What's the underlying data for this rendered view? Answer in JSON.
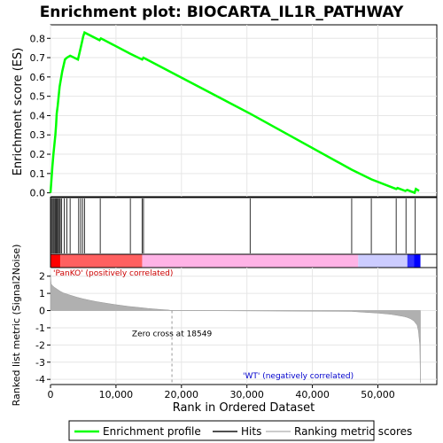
{
  "chart_data": {
    "type": "line",
    "title": "Enrichment plot: BIOCARTA_IL1R_PATHWAY",
    "es_panel": {
      "ylabel": "Enrichment score (ES)",
      "ylim": [
        -0.02,
        0.87
      ],
      "yticks": [
        0.0,
        0.1,
        0.2,
        0.3,
        0.4,
        0.5,
        0.6,
        0.7,
        0.8
      ],
      "ytick_labels": [
        "0.0",
        "0.1",
        "0.2",
        "0.3",
        "0.4",
        "0.5",
        "0.6",
        "0.7",
        "0.8"
      ],
      "series": [
        {
          "name": "Enrichment profile",
          "color": "#00ff00",
          "x": [
            0,
            150,
            300,
            450,
            600,
            750,
            850,
            950,
            1100,
            1250,
            1400,
            1600,
            1800,
            2000,
            2200,
            2500,
            3000,
            4200,
            4400,
            4600,
            4800,
            5000,
            5200,
            7500,
            7700,
            12200,
            14000,
            14200,
            30500,
            46000,
            49000,
            52800,
            53000,
            54200,
            54500,
            55600,
            55800,
            56300
          ],
          "y": [
            0.0,
            0.07,
            0.14,
            0.2,
            0.25,
            0.3,
            0.35,
            0.41,
            0.45,
            0.5,
            0.55,
            0.59,
            0.63,
            0.66,
            0.69,
            0.7,
            0.71,
            0.69,
            0.72,
            0.75,
            0.78,
            0.81,
            0.83,
            0.79,
            0.8,
            0.72,
            0.69,
            0.7,
            0.41,
            0.12,
            0.07,
            0.02,
            0.025,
            0.01,
            0.015,
            0.0,
            0.02,
            0.01
          ]
        }
      ]
    },
    "hits_panel": {
      "hit_positions": [
        100,
        250,
        400,
        550,
        700,
        820,
        950,
        1050,
        1200,
        1350,
        1500,
        1700,
        2100,
        2500,
        3000,
        4300,
        4600,
        4900,
        5200,
        7600,
        12200,
        14000,
        14200,
        30500,
        46000,
        49000,
        52800,
        54300,
        55700
      ]
    },
    "metric_panel": {
      "ylabel": "Ranked list metric (Signal2Noise)",
      "xlabel": "Rank in Ordered Dataset",
      "ylim": [
        -4.3,
        2.5
      ],
      "yticks": [
        -4,
        -3,
        -2,
        -1,
        0,
        1,
        2
      ],
      "ytick_labels": [
        "-4",
        "-3",
        "-2",
        "-1",
        "0",
        "1",
        "2"
      ],
      "xlim": [
        0,
        59000
      ],
      "xticks": [
        0,
        10000,
        20000,
        30000,
        40000,
        50000
      ],
      "xtick_labels": [
        "0",
        "10,000",
        "20,000",
        "30,000",
        "40,000",
        "50,000"
      ],
      "metric_x": [
        0,
        100,
        300,
        600,
        1000,
        1500,
        2000,
        3000,
        4000,
        5000,
        6000,
        7000,
        8000,
        9000,
        10000,
        11000,
        12000,
        13000,
        14000,
        15000,
        16000,
        17000,
        18000,
        18549,
        46000,
        48000,
        50000,
        52000,
        53000,
        54000,
        54500,
        55000,
        55500,
        56000,
        56200,
        56400,
        56500
      ],
      "metric_y": [
        2.1,
        1.55,
        1.45,
        1.35,
        1.25,
        1.12,
        1.02,
        0.9,
        0.78,
        0.68,
        0.6,
        0.52,
        0.46,
        0.4,
        0.34,
        0.29,
        0.24,
        0.2,
        0.16,
        0.12,
        0.09,
        0.06,
        0.03,
        0.0,
        -0.05,
        -0.1,
        -0.15,
        -0.22,
        -0.28,
        -0.35,
        -0.4,
        -0.48,
        -0.6,
        -0.85,
        -1.2,
        -2.0,
        -4.2
      ],
      "zero_cross_label": "Zero cross at 18549",
      "pos_label": "'PanKO' (positively correlated)",
      "neg_label": "'WT' (negatively correlated)"
    },
    "legend": {
      "items": [
        {
          "label": "Enrichment profile",
          "color": "#00ff00"
        },
        {
          "label": "Hits",
          "color": "#505050"
        },
        {
          "label": "Ranking metric scores",
          "color": "#cccccc"
        }
      ]
    },
    "colors": {
      "profile": "#00ff00",
      "pos_bar": "#ff0000",
      "pos_bar_light": "#ff6060",
      "neg_bar": "#ffb3e6",
      "neg_bar_light": "#ccccff",
      "neg_bar_dark": "#0000ff",
      "pos_label": "#cc0000",
      "neg_label": "#0000cc",
      "metric_fill": "#b0b0b0",
      "grid": "#e6e6e6"
    }
  }
}
